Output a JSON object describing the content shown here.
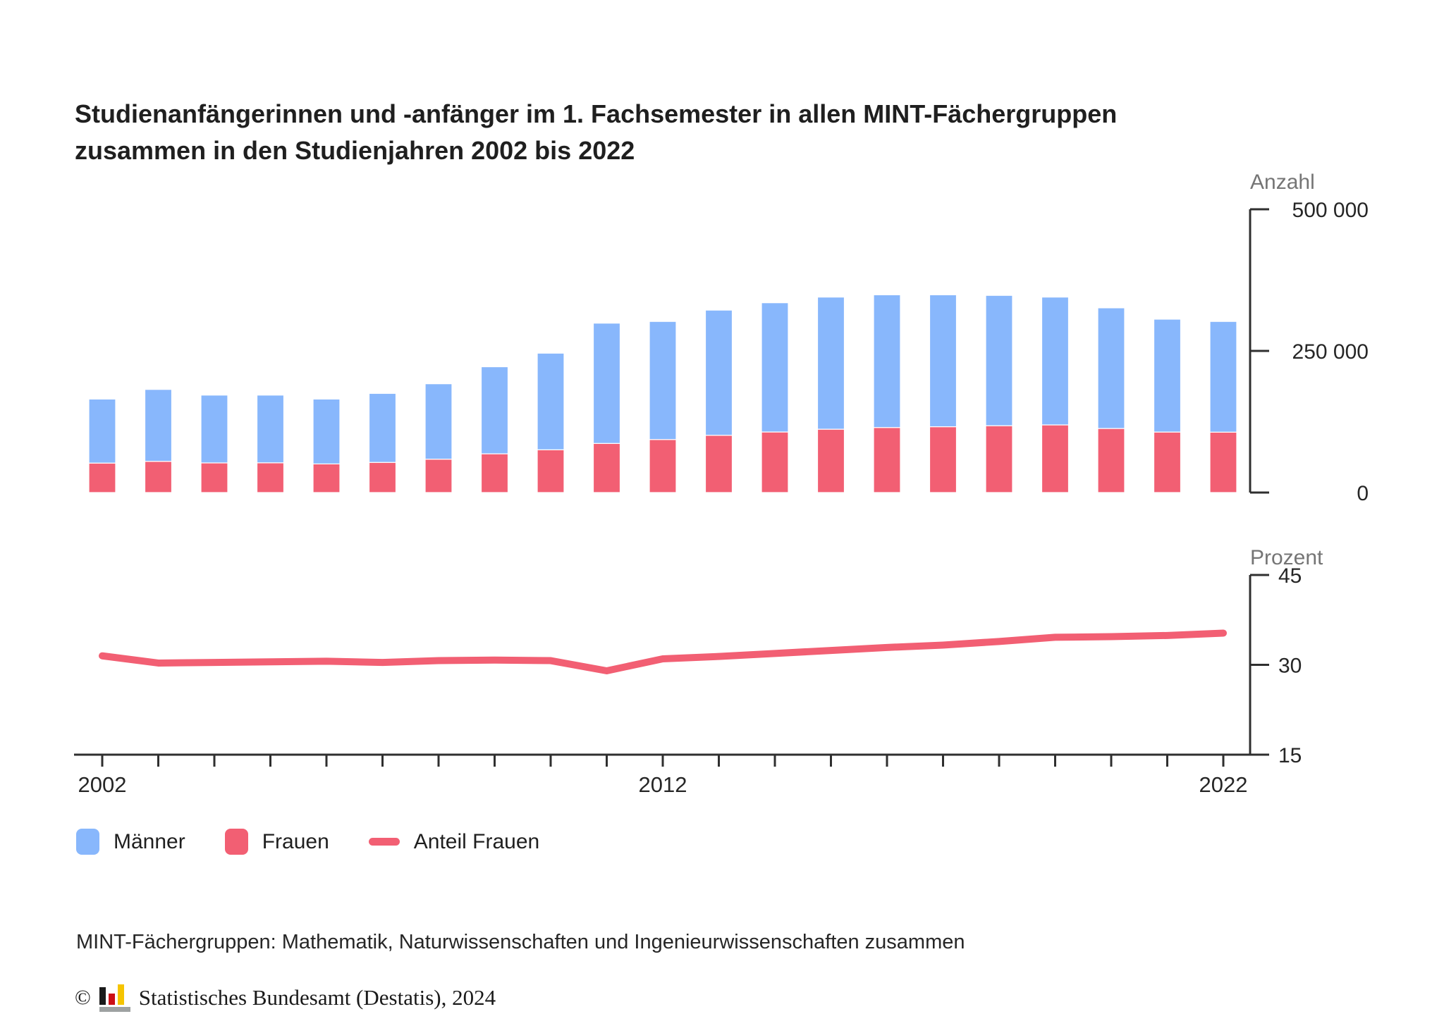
{
  "page": {
    "background": "#ffffff"
  },
  "title": {
    "line1": "Studienanfängerinnen und -anfänger im 1. Fachsemester in allen MINT-Fächergruppen",
    "line2": "zusammen in den Studienjahren 2002 bis 2022"
  },
  "colors": {
    "maenner": "#88B7FC",
    "frauen": "#F25F73",
    "anteil_line": "#F25F73",
    "axis": "#2f2f2f",
    "unit_label": "#757575",
    "tick_label": "#262626"
  },
  "legend": [
    {
      "label": "Männer",
      "type": "square",
      "color": "#88B7FC"
    },
    {
      "label": "Frauen",
      "type": "square",
      "color": "#F25F73"
    },
    {
      "label": "Anteil Frauen",
      "type": "line",
      "color": "#F25F73"
    }
  ],
  "footnote": "MINT-Fächergruppen: Mathematik, Naturwissenschaften und Ingenieurwissenschaften zusammen",
  "source": {
    "copyright_symbol": "©",
    "text": "Statistisches Bundesamt (Destatis), 2024",
    "logo": {
      "bar_colors": [
        "#1a1a1a",
        "#cc1016",
        "#f5c400"
      ],
      "base_color": "#9ea2a2"
    }
  },
  "chart_data": [
    {
      "type": "bar",
      "stacked": true,
      "title": "Studienanfängerinnen und -anfänger im 1. Fachsemester in allen MINT-Fächergruppen zusammen in den Studienjahren 2002 bis 2022",
      "ylabel": "Anzahl",
      "ylim": [
        0,
        500000
      ],
      "grid": false,
      "legend_position": "bottom",
      "yticks": [
        {
          "value": 500000,
          "label": "500 000"
        },
        {
          "value": 250000,
          "label": "250 000"
        },
        {
          "value": 0,
          "label": "0"
        }
      ],
      "categories": [
        2002,
        2003,
        2004,
        2005,
        2006,
        2007,
        2008,
        2009,
        2010,
        2011,
        2012,
        2013,
        2014,
        2015,
        2016,
        2017,
        2018,
        2019,
        2020,
        2021,
        2022
      ],
      "x_tick_labels_shown": [
        {
          "index": 0,
          "label": "2002"
        },
        {
          "index": 10,
          "label": "2012"
        },
        {
          "index": 20,
          "label": "2022"
        }
      ],
      "series": [
        {
          "name": "Frauen",
          "stack_order": "bottom",
          "values": [
            52000,
            55100,
            52300,
            52500,
            50500,
            53200,
            58900,
            68400,
            75500,
            86700,
            93600,
            101100,
            106900,
            111800,
            114800,
            116200,
            118000,
            119400,
            113100,
            106800,
            106600
          ]
        },
        {
          "name": "Männer",
          "stack_order": "top",
          "values": [
            113000,
            126900,
            119700,
            119500,
            114500,
            121800,
            133100,
            153600,
            170500,
            212300,
            208400,
            220900,
            228100,
            233200,
            234200,
            232800,
            230000,
            225600,
            212900,
            199200,
            195400
          ]
        }
      ]
    },
    {
      "type": "line",
      "ylabel": "Prozent",
      "ylim": [
        15,
        45
      ],
      "grid": false,
      "yticks": [
        {
          "value": 45,
          "label": "45"
        },
        {
          "value": 30,
          "label": "30"
        },
        {
          "value": 15,
          "label": "15"
        }
      ],
      "categories": [
        2002,
        2003,
        2004,
        2005,
        2006,
        2007,
        2008,
        2009,
        2010,
        2011,
        2012,
        2013,
        2014,
        2015,
        2016,
        2017,
        2018,
        2019,
        2020,
        2021,
        2022
      ],
      "series": [
        {
          "name": "Anteil Frauen",
          "values": [
            31.5,
            30.3,
            30.4,
            30.5,
            30.6,
            30.4,
            30.7,
            30.8,
            30.7,
            29.0,
            31.0,
            31.4,
            31.9,
            32.4,
            32.9,
            33.3,
            33.9,
            34.6,
            34.7,
            34.9,
            35.3
          ]
        }
      ]
    }
  ]
}
